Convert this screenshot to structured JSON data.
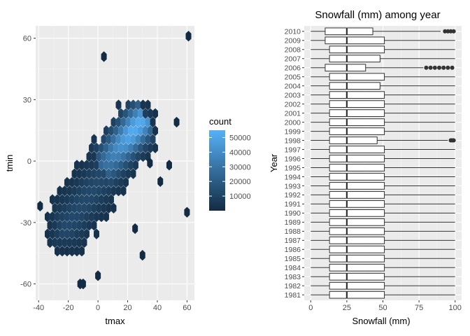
{
  "chart_data": [
    {
      "type": "hexbin",
      "xlabel": "tmax",
      "ylabel": "tmin",
      "xlim": [
        -42,
        65
      ],
      "ylim": [
        -68,
        66
      ],
      "x_ticks": [
        -40,
        -20,
        0,
        20,
        40,
        60
      ],
      "y_ticks": [
        -60,
        -30,
        0,
        30,
        60
      ],
      "x_tick_labels": [
        "-40",
        "-20",
        "0",
        "20",
        "40",
        "60"
      ],
      "y_tick_labels": [
        "-60",
        "-30",
        "0",
        "30",
        "60"
      ],
      "grid": true,
      "legend": {
        "title": "count",
        "position": "right",
        "range": [
          0,
          55000
        ],
        "ticks": [
          10000,
          20000,
          30000,
          40000,
          50000
        ],
        "tick_labels": [
          "10000",
          "20000",
          "30000",
          "40000",
          "50000"
        ],
        "color_low": "#132b43",
        "color_high": "#56b1f7"
      },
      "clusters": [
        {
          "x0": -22,
          "y0": -33,
          "x1": 28,
          "y1": 18,
          "width": 17,
          "peak": 52000
        },
        {
          "x0": 2,
          "y0": -3,
          "x1": 30,
          "y1": 20,
          "width": 6,
          "peak": 30000
        }
      ],
      "outliers": [
        [
          61,
          61
        ],
        [
          4,
          51
        ],
        [
          -39,
          -22
        ],
        [
          -12,
          -60
        ],
        [
          -10,
          -60
        ],
        [
          0,
          -56
        ],
        [
          60,
          -25
        ],
        [
          30,
          -46
        ],
        [
          42,
          -10
        ],
        [
          25,
          -33
        ],
        [
          35,
          -1
        ],
        [
          48,
          -2
        ],
        [
          53,
          19
        ]
      ]
    },
    {
      "type": "boxplot",
      "title": "Snowfall (mm) among year",
      "xlabel": "Snowfall (mm)",
      "ylabel": "Year",
      "xlim": [
        0,
        100
      ],
      "x_ticks": [
        0,
        25,
        50,
        75,
        100
      ],
      "x_tick_labels": [
        "0",
        "25",
        "50",
        "75",
        "100"
      ],
      "grid": true,
      "default_box": {
        "min": 0,
        "q1": 13,
        "median": 25,
        "q3": 51,
        "max": 100
      },
      "categories": [
        "1981",
        "1982",
        "1983",
        "1984",
        "1985",
        "1986",
        "1987",
        "1988",
        "1989",
        "1990",
        "1991",
        "1992",
        "1993",
        "1994",
        "1995",
        "1996",
        "1997",
        "1998",
        "1999",
        "2000",
        "2001",
        "2002",
        "2003",
        "2004",
        "2005",
        "2006",
        "2007",
        "2008",
        "2009",
        "2010"
      ],
      "special_boxes": {
        "1998": {
          "min": 0,
          "q1": 13,
          "median": 25,
          "q3": 46,
          "max": 95,
          "outliers": [
            97,
            98,
            99
          ]
        },
        "2004": {
          "min": 0,
          "q1": 13,
          "median": 25,
          "q3": 48,
          "max": 100
        },
        "2006": {
          "min": 0,
          "q1": 10,
          "median": 25,
          "q3": 38,
          "max": 78,
          "outliers": [
            80,
            83,
            86,
            89,
            92,
            95,
            98
          ]
        },
        "2007": {
          "min": 0,
          "q1": 13,
          "median": 25,
          "q3": 48,
          "max": 100
        },
        "2009": {
          "min": 0,
          "q1": 10,
          "median": 25,
          "q3": 51,
          "max": 100
        },
        "2010": {
          "min": 0,
          "q1": 10,
          "median": 25,
          "q3": 43,
          "max": 90,
          "outliers": [
            93,
            95,
            97,
            99
          ]
        }
      }
    }
  ]
}
